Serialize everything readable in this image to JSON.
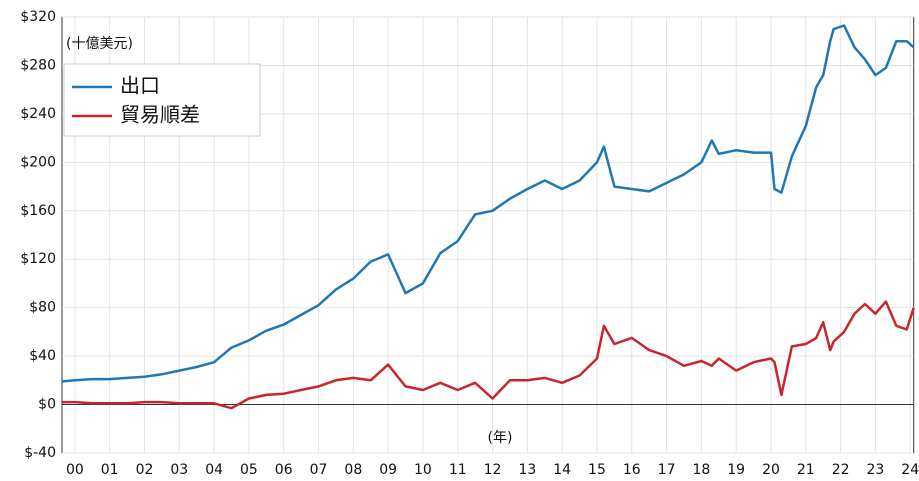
{
  "chart_data": {
    "type": "line",
    "annotations": [
      "(十億美元)",
      "(年)"
    ],
    "x": [
      -0.37,
      0,
      0.5,
      1,
      1.5,
      2,
      2.5,
      3,
      3.5,
      4,
      4.5,
      5,
      5.5,
      6,
      6.5,
      7,
      7.5,
      8,
      8.5,
      9,
      9.5,
      10,
      10.5,
      11,
      11.5,
      12,
      12.5,
      13,
      13.5,
      14,
      14.5,
      15,
      15.2,
      15.5,
      16,
      16.5,
      17,
      17.5,
      18,
      18.3,
      18.5,
      19,
      19.5,
      20,
      20.1,
      20.3,
      20.6,
      21,
      21.3,
      21.5,
      21.7,
      21.8,
      22.1,
      22.4,
      22.7,
      23,
      23.3,
      23.6,
      23.9,
      24.1
    ],
    "series": [
      {
        "name": "出口",
        "color": "#1f77b4",
        "values": [
          19,
          20,
          21,
          21,
          22,
          23,
          25,
          28,
          31,
          35,
          47,
          53,
          61,
          66,
          74,
          82,
          95,
          104,
          118,
          124,
          92,
          100,
          125,
          135,
          157,
          160,
          170,
          178,
          185,
          178,
          185,
          200,
          213,
          180,
          178,
          176,
          183,
          190,
          200,
          218,
          207,
          210,
          208,
          208,
          178,
          175,
          205,
          230,
          262,
          272,
          300,
          310,
          313,
          295,
          285,
          272,
          278,
          300,
          300,
          295
        ]
      },
      {
        "name": "貿易順差",
        "color": "#c8262d",
        "values": [
          2,
          2,
          1,
          1,
          1,
          2,
          2,
          1,
          1,
          1,
          -3,
          5,
          8,
          9,
          12,
          15,
          20,
          22,
          20,
          33,
          15,
          12,
          18,
          12,
          18,
          5,
          20,
          20,
          22,
          18,
          24,
          38,
          65,
          50,
          55,
          45,
          40,
          32,
          36,
          32,
          38,
          28,
          35,
          38,
          35,
          8,
          48,
          50,
          55,
          68,
          45,
          52,
          60,
          75,
          83,
          75,
          85,
          65,
          62,
          80
        ]
      }
    ],
    "xlim": [
      -0.37,
      24.1
    ],
    "xticks": [
      {
        "value": 0,
        "label": "00"
      },
      {
        "value": 1,
        "label": "01"
      },
      {
        "value": 2,
        "label": "02"
      },
      {
        "value": 3,
        "label": "03"
      },
      {
        "value": 4,
        "label": "04"
      },
      {
        "value": 5,
        "label": "05"
      },
      {
        "value": 6,
        "label": "06"
      },
      {
        "value": 7,
        "label": "07"
      },
      {
        "value": 8,
        "label": "08"
      },
      {
        "value": 9,
        "label": "09"
      },
      {
        "value": 10,
        "label": "10"
      },
      {
        "value": 11,
        "label": "11"
      },
      {
        "value": 12,
        "label": "12"
      },
      {
        "value": 13,
        "label": "13"
      },
      {
        "value": 14,
        "label": "14"
      },
      {
        "value": 15,
        "label": "15"
      },
      {
        "value": 16,
        "label": "16"
      },
      {
        "value": 17,
        "label": "17"
      },
      {
        "value": 18,
        "label": "18"
      },
      {
        "value": 19,
        "label": "19"
      },
      {
        "value": 20,
        "label": "20"
      },
      {
        "value": 21,
        "label": "21"
      },
      {
        "value": 22,
        "label": "22"
      },
      {
        "value": 23,
        "label": "23"
      },
      {
        "value": 24,
        "label": "24"
      }
    ],
    "ylim": [
      -40,
      320
    ],
    "yticks": [
      {
        "value": -40,
        "label": "$-40"
      },
      {
        "value": 0,
        "label": "$0"
      },
      {
        "value": 40,
        "label": "$40"
      },
      {
        "value": 80,
        "label": "$80"
      },
      {
        "value": 120,
        "label": "$120"
      },
      {
        "value": 160,
        "label": "$160"
      },
      {
        "value": 200,
        "label": "$200"
      },
      {
        "value": 240,
        "label": "$240"
      },
      {
        "value": 280,
        "label": "$280"
      },
      {
        "value": 320,
        "label": "$320"
      }
    ],
    "grid": true,
    "legend": "upper left"
  }
}
